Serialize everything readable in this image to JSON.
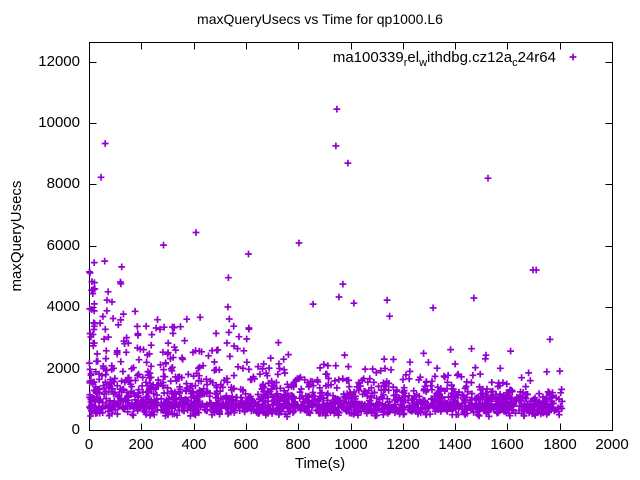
{
  "colors": {
    "background": "#ffffff",
    "border": "#000000",
    "text": "#000000",
    "marker": "#9400D3"
  },
  "chart_data": {
    "type": "scatter",
    "title": "maxQueryUsecs vs Time for qp1000.L6",
    "xlabel": "Time(s)",
    "ylabel": "maxQueryUsecs",
    "xlim": [
      0,
      2000
    ],
    "ylim": [
      0,
      12600
    ],
    "x_ticks": [
      0,
      200,
      400,
      600,
      800,
      1000,
      1200,
      1400,
      1600,
      1800,
      2000
    ],
    "y_ticks": [
      0,
      2000,
      4000,
      6000,
      8000,
      10000,
      12000
    ],
    "grid": false,
    "legend_position": "top-right-inside",
    "series": [
      {
        "name_segments": [
          {
            "text": "ma100339",
            "sub": false
          },
          {
            "text": "r",
            "sub": true
          },
          {
            "text": "el",
            "sub": false
          },
          {
            "text": "w",
            "sub": true
          },
          {
            "text": "ithdbg.cz12a",
            "sub": false
          },
          {
            "text": "c",
            "sub": true
          },
          {
            "text": "24r64",
            "sub": false
          }
        ],
        "marker": "plus",
        "color": "#9400D3",
        "x_data_range": [
          0,
          1810
        ],
        "outlier_points": [
          [
            20,
            5450
          ],
          [
            46,
            8230
          ],
          [
            60,
            5500
          ],
          [
            62,
            9330
          ],
          [
            69,
            4230
          ],
          [
            73,
            4500
          ],
          [
            88,
            4170
          ],
          [
            120,
            4820
          ],
          [
            122,
            4760
          ],
          [
            125,
            5310
          ],
          [
            285,
            6020
          ],
          [
            409,
            6430
          ],
          [
            531,
            4005
          ],
          [
            533,
            4960
          ],
          [
            610,
            5730
          ],
          [
            803,
            6090
          ],
          [
            857,
            4100
          ],
          [
            944,
            9250
          ],
          [
            948,
            10450
          ],
          [
            956,
            4330
          ],
          [
            971,
            4750
          ],
          [
            990,
            8690
          ],
          [
            1013,
            4130
          ],
          [
            1140,
            4230
          ],
          [
            1316,
            3975
          ],
          [
            1472,
            4300
          ],
          [
            1526,
            8200
          ],
          [
            1698,
            5210
          ],
          [
            1710,
            5210
          ],
          [
            1763,
            2950
          ]
        ],
        "point_cloud": {
          "description": "dense band of ~1700 points; core 500-1500 usec across 0-1800 s, upper tail decaying from ~3900 usec at start to ~2000 usec at end",
          "seed": 1337,
          "count": 1650,
          "x_range": [
            1,
            1810
          ],
          "base_range": [
            430,
            750
          ],
          "tail_scale_start": 1000,
          "tail_scale_end": 330,
          "tail_decay_time": 480,
          "y_cap": 3950,
          "startup_cluster": {
            "count": 30,
            "x_range": [
              1,
              23
            ],
            "y_range": [
              600,
              5300
            ]
          },
          "mid_band": {
            "count": 40,
            "x_range": [
              20,
              650
            ],
            "y_range": [
              1900,
              3400
            ]
          }
        }
      }
    ]
  }
}
